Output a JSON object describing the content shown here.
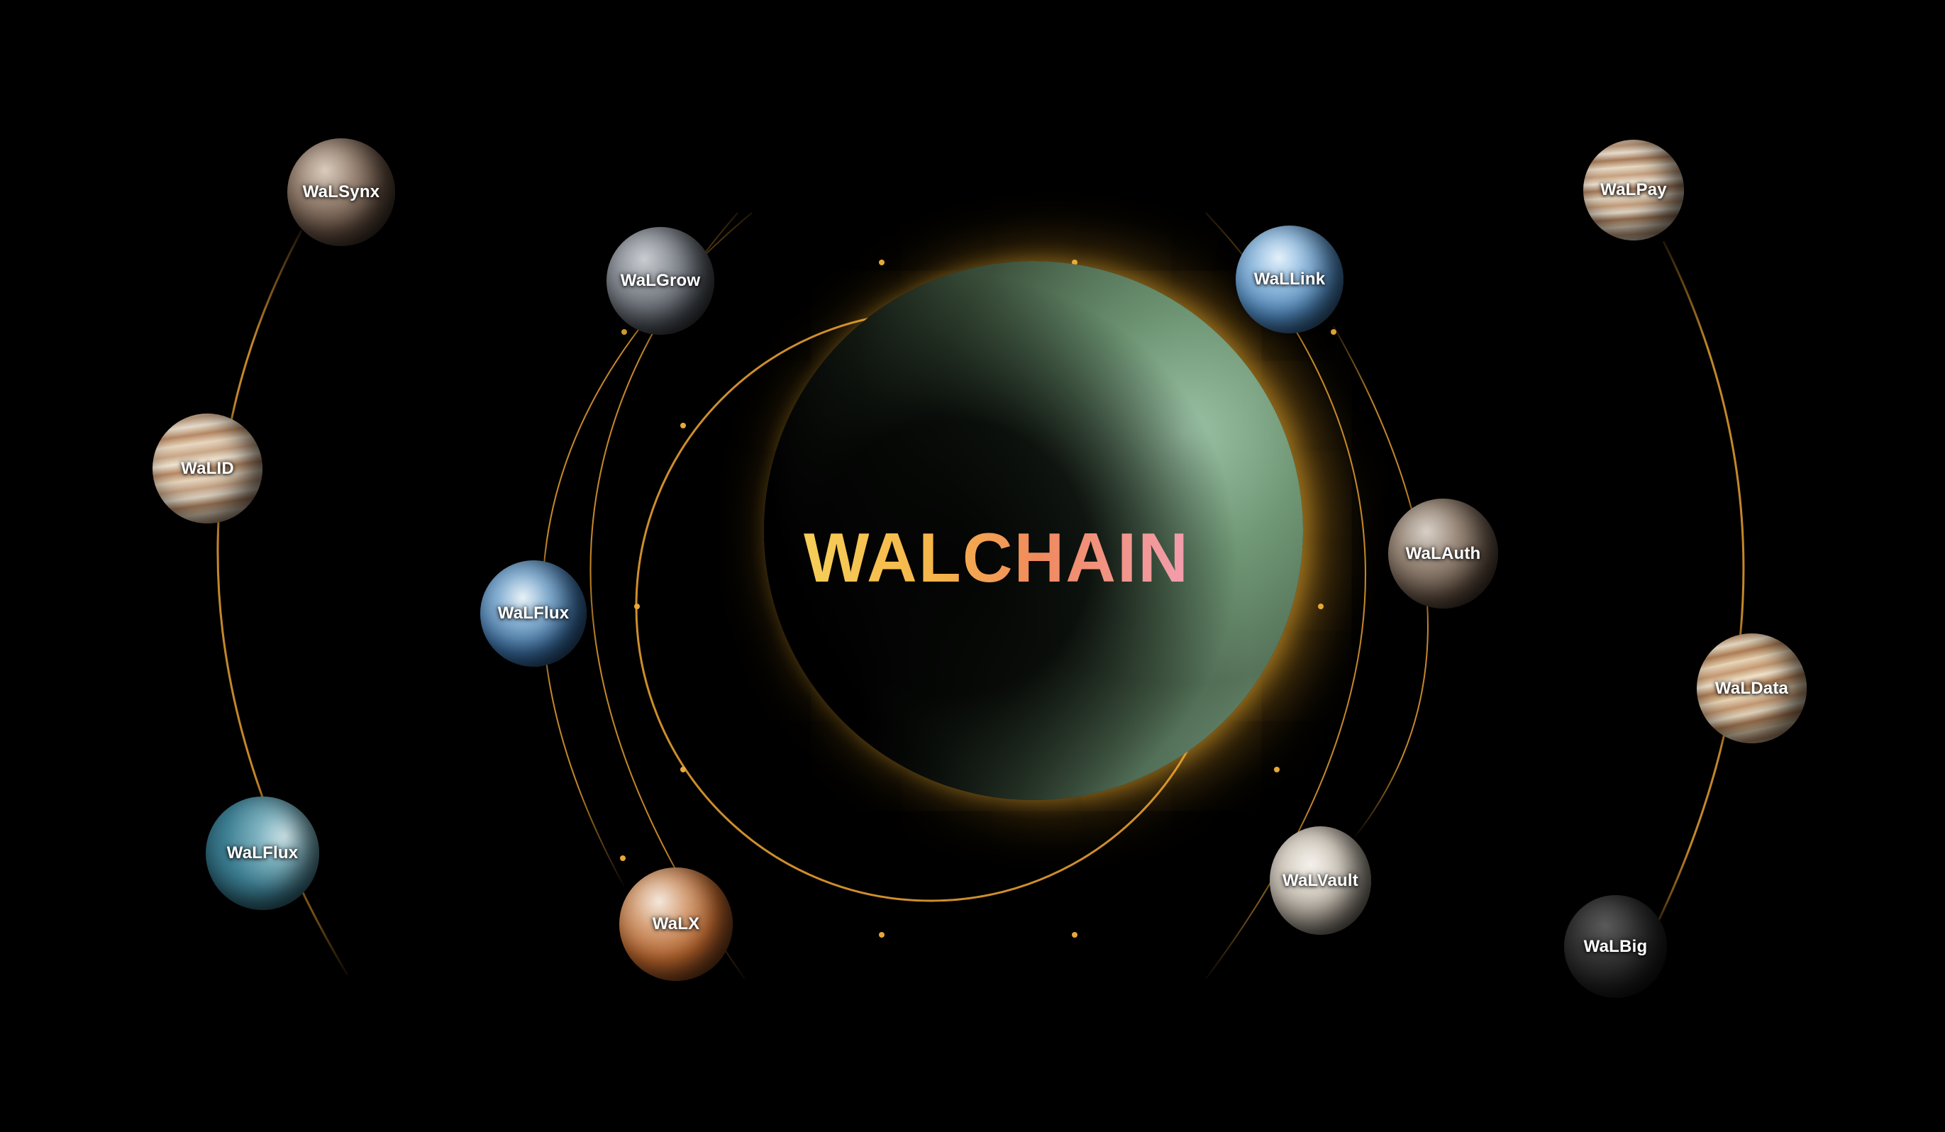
{
  "brand": {
    "title": "WALCHAIN"
  },
  "colors": {
    "orbit": "#d9962e",
    "glow": "#f0aa28",
    "background": "#000000"
  },
  "planets": [
    {
      "id": "walsynx",
      "label": "WaLSynx",
      "style": "cracked-rock"
    },
    {
      "id": "walid",
      "label": "WaLID",
      "style": "jupiter"
    },
    {
      "id": "walflux-outer",
      "label": "WaLFlux",
      "style": "teal"
    },
    {
      "id": "walgrow",
      "label": "WaLGrow",
      "style": "grey-rock"
    },
    {
      "id": "walflux-inner",
      "label": "WaLFlux",
      "style": "earth-blue"
    },
    {
      "id": "walx",
      "label": "WaLX",
      "style": "mars"
    },
    {
      "id": "wallink",
      "label": "WaLLink",
      "style": "ice-blue"
    },
    {
      "id": "walauth",
      "label": "WaLAuth",
      "style": "brown-rock"
    },
    {
      "id": "walvault",
      "label": "WaLVault",
      "style": "venus"
    },
    {
      "id": "walpay",
      "label": "WaLPay",
      "style": "jupiter"
    },
    {
      "id": "waldata",
      "label": "WaLData",
      "style": "jupiter"
    },
    {
      "id": "walbig",
      "label": "WaLBig",
      "style": "dark-moon"
    }
  ]
}
